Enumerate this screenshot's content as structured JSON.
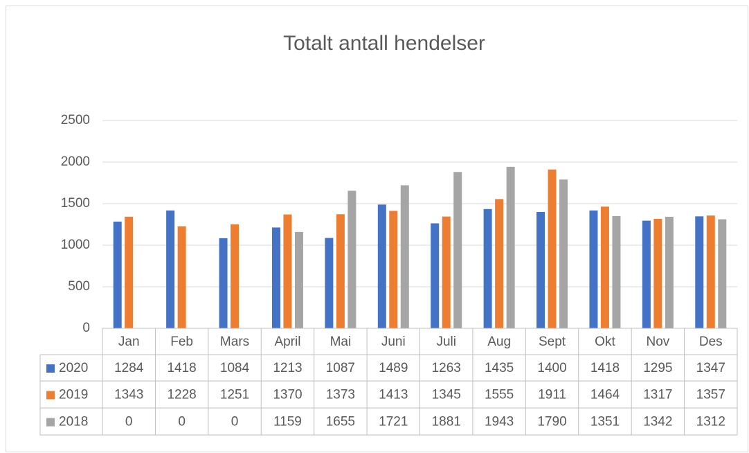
{
  "chart_data": {
    "type": "bar",
    "title": "Totalt antall hendelser",
    "categories": [
      "Jan",
      "Feb",
      "Mars",
      "April",
      "Mai",
      "Juni",
      "Juli",
      "Aug",
      "Sept",
      "Okt",
      "Nov",
      "Des"
    ],
    "series": [
      {
        "name": "2020",
        "color": "#4472c4",
        "values": [
          1284,
          1418,
          1084,
          1213,
          1087,
          1489,
          1263,
          1435,
          1400,
          1418,
          1295,
          1347
        ]
      },
      {
        "name": "2019",
        "color": "#ed7d31",
        "values": [
          1343,
          1228,
          1251,
          1370,
          1373,
          1413,
          1345,
          1555,
          1911,
          1464,
          1317,
          1357
        ]
      },
      {
        "name": "2018",
        "color": "#a5a5a5",
        "values": [
          0,
          0,
          0,
          1159,
          1655,
          1721,
          1881,
          1943,
          1790,
          1351,
          1342,
          1312
        ]
      }
    ],
    "ylim": [
      0,
      2500
    ],
    "yticks": [
      0,
      500,
      1000,
      1500,
      2000,
      2500
    ],
    "grid": true,
    "data_table": true
  }
}
